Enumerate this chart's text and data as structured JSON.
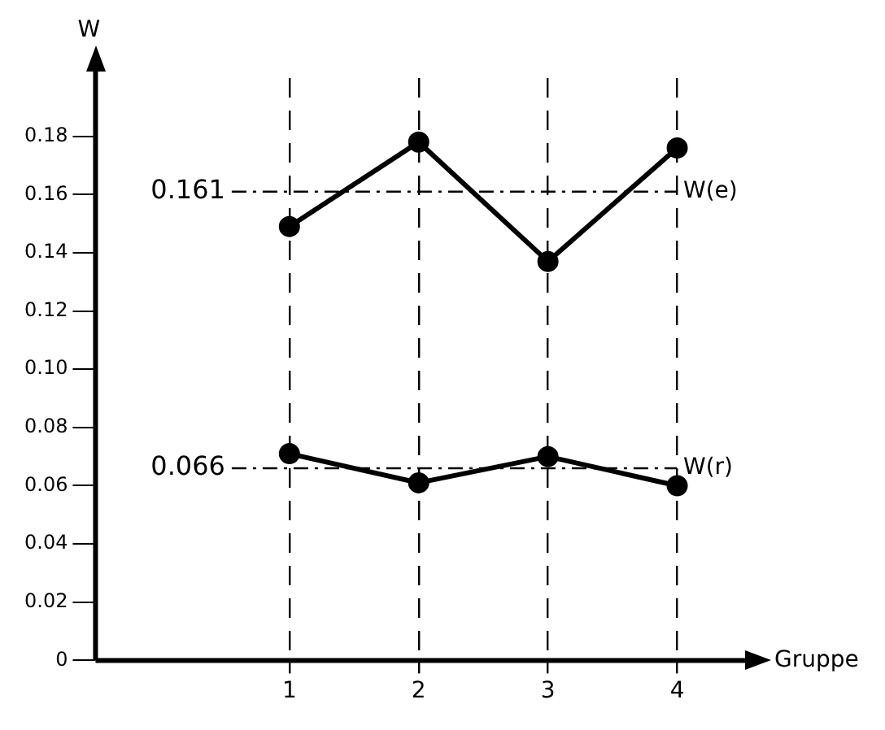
{
  "chart_data": {
    "type": "line",
    "xlabel": "Gruppe",
    "ylabel": "W",
    "categories": [
      "1",
      "2",
      "3",
      "4"
    ],
    "series": [
      {
        "color": "#000000",
        "values": [
          0.149,
          0.178,
          0.137,
          0.176
        ]
      },
      {
        "color": "#000000",
        "values": [
          0.071,
          0.061,
          0.07,
          0.06
        ]
      }
    ],
    "ylim": [
      0,
      0.2
    ],
    "yticks": [
      0,
      0.02,
      0.04,
      0.06,
      0.08,
      {
        "value": 0.1,
        "label": "0.10"
      },
      0.12,
      0.14,
      0.16,
      0.18
    ],
    "annotations": [
      "0.161",
      "0.066"
    ],
    "grid": "x",
    "marker": "circle",
    "line_style": "solid",
    "legend": false,
    "ref_lines": [
      {
        "axis": "y",
        "value": 0.161,
        "label": "W(e)",
        "line_style": "dashed",
        "color": "#000000"
      },
      {
        "axis": "y",
        "value": 0.066,
        "label": "W(r)",
        "line_style": "dashed",
        "color": "#000000"
      }
    ]
  }
}
